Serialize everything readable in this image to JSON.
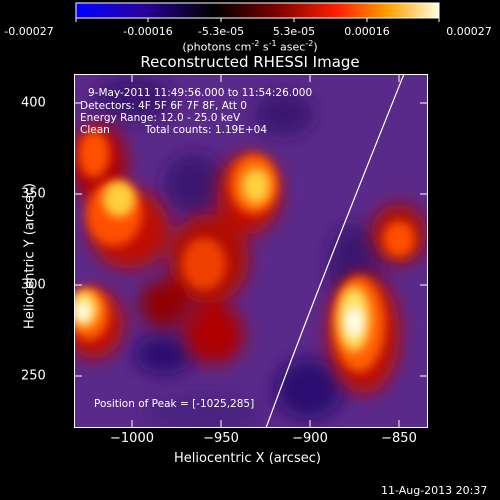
{
  "colorbar": {
    "tick_labels": [
      "-0.00027",
      "-0.00016",
      "-5.3e-05",
      "5.3e-05",
      "0.00016",
      "0.00027"
    ],
    "unit_prefix": "(photons cm",
    "unit_exp1": "-2",
    "unit_mid": " s",
    "unit_exp2": "-1",
    "unit_mid2": " asec",
    "unit_exp3": "-2",
    "unit_suffix": ")",
    "colormap": [
      "#0000ff",
      "#20007a",
      "#000000",
      "#8c0000",
      "#ff2000",
      "#ffa000",
      "#ffffe0"
    ]
  },
  "image": {
    "title": "Reconstructed RHESSI Image",
    "time_range": "9-May-2011 11:49:56.000 to 11:54:26.000",
    "detectors": "Detectors: 4F 5F 6F 7F 8F, Att 0",
    "energy_range": "Energy Range: 12.0 - 25.0 keV",
    "method": "Clean",
    "total_counts": "Total counts: 1.19E+04",
    "peak_position": "Position of Peak = [-1025,285]",
    "xlabel": "Heliocentric X (arcsec)",
    "ylabel": "Heliocentric Y (arcsec)",
    "x_ticks": [
      "−1000",
      "−950",
      "−900",
      "−850"
    ],
    "y_ticks": [
      "400",
      "350",
      "300",
      "250"
    ],
    "background_color": "#5a2a8a",
    "limb_color": "#ffffff"
  },
  "footer": {
    "timestamp": "11-Aug-2013 20:37"
  }
}
